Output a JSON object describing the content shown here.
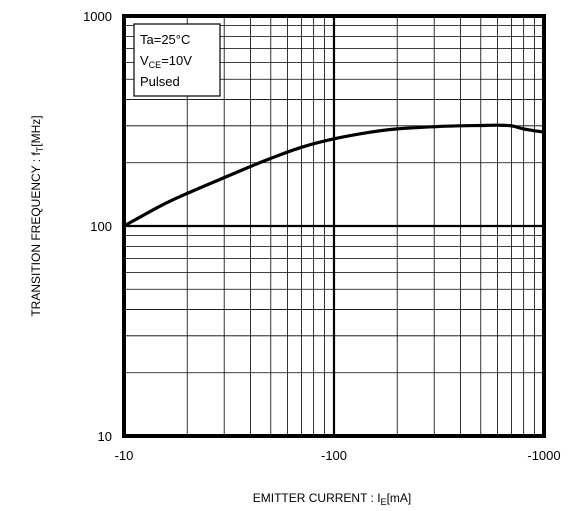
{
  "chart_data": {
    "type": "line",
    "xaxis": {
      "scale": "log",
      "range": [
        10,
        1000
      ],
      "ticks": [
        {
          "value": 10,
          "label": "-10"
        },
        {
          "value": 100,
          "label": "-100"
        },
        {
          "value": 1000,
          "label": "-1000"
        }
      ],
      "label": {
        "main": "EMITTER CURRENT : I",
        "sub": "E",
        "tail": "[mA]"
      }
    },
    "yaxis": {
      "scale": "log",
      "range": [
        10,
        1000
      ],
      "ticks": [
        {
          "value": 10,
          "label": "10"
        },
        {
          "value": 100,
          "label": "100"
        },
        {
          "value": 1000,
          "label": "1000"
        }
      ],
      "label": {
        "main": "TRANSITION FREQUENCY : f",
        "sub": "T",
        "tail": "[MHz]"
      }
    },
    "grid": true,
    "legend": {
      "position": "top-left",
      "lines": [
        {
          "main": "Ta=25°C",
          "sub": "",
          "tail": ""
        },
        {
          "main": "V",
          "sub": "CE",
          "tail": "=10V"
        },
        {
          "main": "Pulsed",
          "sub": "",
          "tail": ""
        }
      ]
    },
    "series": [
      {
        "x": [
          10,
          15,
          20,
          30,
          40,
          50,
          70,
          100,
          150,
          200,
          300,
          400,
          500,
          600,
          700,
          800,
          1000
        ],
        "y": [
          100,
          125,
          143,
          170,
          192,
          210,
          237,
          260,
          280,
          290,
          297,
          300,
          301,
          302,
          300,
          290,
          280
        ]
      }
    ]
  }
}
